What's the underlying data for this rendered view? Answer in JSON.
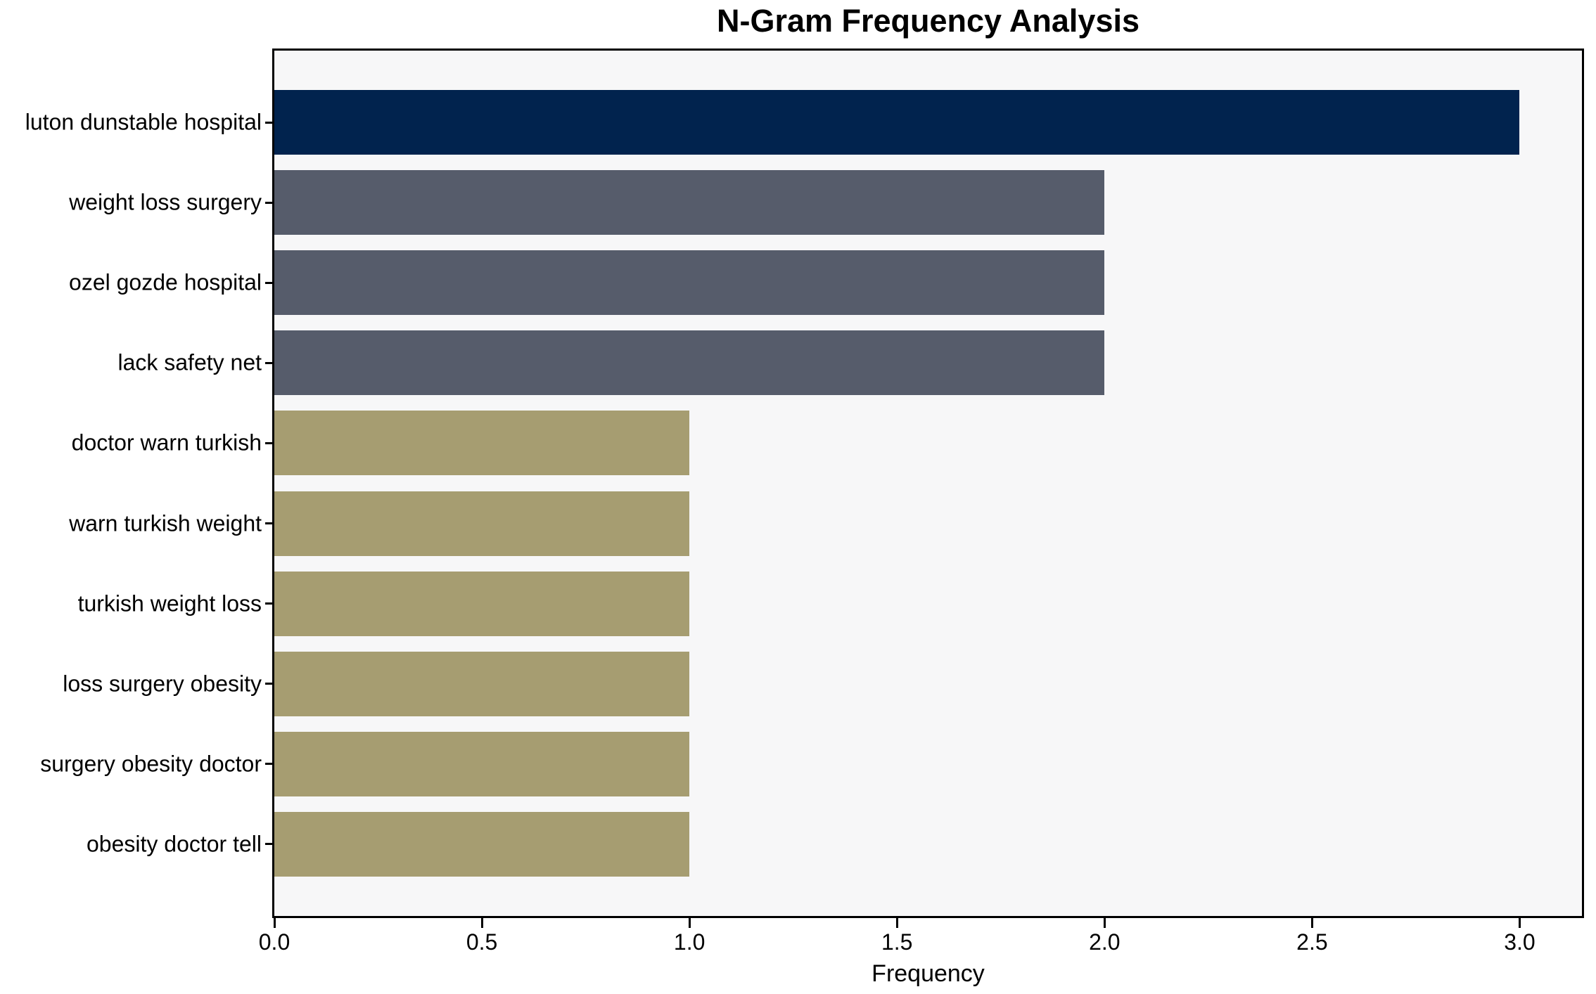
{
  "chart_data": {
    "type": "bar",
    "orientation": "horizontal",
    "title": "N-Gram Frequency Analysis",
    "xlabel": "Frequency",
    "ylabel": "",
    "categories": [
      "luton dunstable hospital",
      "weight loss surgery",
      "ozel gozde hospital",
      "lack safety net",
      "doctor warn turkish",
      "warn turkish weight",
      "turkish weight loss",
      "loss surgery obesity",
      "surgery obesity doctor",
      "obesity doctor tell"
    ],
    "values": [
      3,
      2,
      2,
      2,
      1,
      1,
      1,
      1,
      1,
      1
    ],
    "bar_colors": [
      "#01234e",
      "#565c6b",
      "#565c6b",
      "#565c6b",
      "#a69d71",
      "#a69d71",
      "#a69d71",
      "#a69d71",
      "#a69d71",
      "#a69d71"
    ],
    "xlim": [
      0,
      3.15
    ],
    "xticks": [
      0,
      0.5,
      1,
      1.5,
      2,
      2.5,
      3
    ],
    "xtick_labels": [
      "0.0",
      "0.5",
      "1.0",
      "1.5",
      "2.0",
      "2.5",
      "3.0"
    ],
    "grid": false,
    "legend": null,
    "plot_background": "#f7f7f8",
    "figure_background": "#ffffff",
    "axis_border_color": "#000000"
  }
}
